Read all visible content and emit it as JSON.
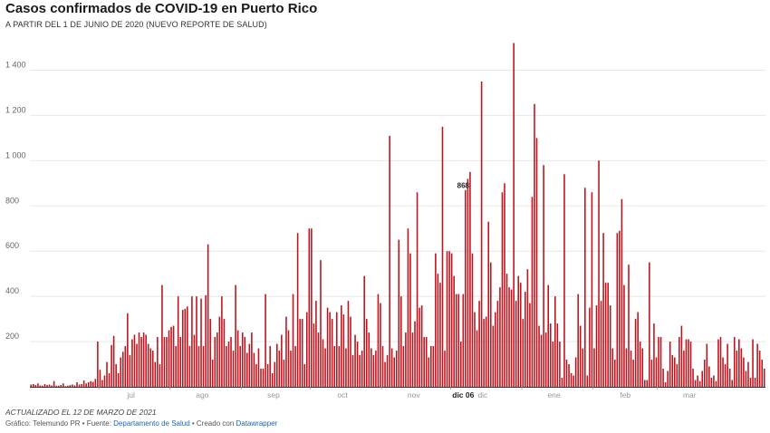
{
  "chart_data": {
    "type": "bar",
    "title": "Casos confirmados de COVID-19 en Puerto Rico",
    "subtitle": "A PARTIR DEL 1 DE JUNIO DE 2020 (NUEVO REPORTE DE SALUD)",
    "y_ticks": [
      "200",
      "400",
      "600",
      "800",
      "1 000",
      "1 200",
      "1 400"
    ],
    "y_tick_values": [
      200,
      400,
      600,
      800,
      1000,
      1200,
      1400
    ],
    "ylim": [
      0,
      1550
    ],
    "grid": true,
    "x_start": "2020-06-01",
    "x_month_labels": [
      {
        "label": "jul",
        "date": "2020-07-01"
      },
      {
        "label": "ago",
        "date": "2020-08-01"
      },
      {
        "label": "sep",
        "date": "2020-09-01"
      },
      {
        "label": "oct",
        "date": "2020-10-01"
      },
      {
        "label": "nov",
        "date": "2020-11-01"
      },
      {
        "label": "dic",
        "date": "2020-12-01"
      },
      {
        "label": "ene",
        "date": "2021-01-01"
      },
      {
        "label": "feb",
        "date": "2021-02-01"
      },
      {
        "label": "mar",
        "date": "2021-03-01"
      }
    ],
    "highlight": {
      "date": "2020-12-06",
      "label": "dic 06",
      "value": 868,
      "value_label": "868"
    },
    "values": [
      10,
      12,
      8,
      15,
      6,
      5,
      12,
      8,
      10,
      6,
      25,
      5,
      5,
      8,
      15,
      3,
      5,
      8,
      10,
      6,
      20,
      10,
      12,
      28,
      15,
      20,
      25,
      22,
      35,
      200,
      75,
      30,
      50,
      110,
      60,
      185,
      225,
      100,
      60,
      130,
      155,
      180,
      325,
      140,
      210,
      230,
      190,
      240,
      220,
      240,
      230,
      190,
      170,
      160,
      110,
      220,
      100,
      450,
      220,
      220,
      250,
      265,
      270,
      180,
      400,
      220,
      340,
      345,
      355,
      180,
      400,
      230,
      400,
      180,
      390,
      180,
      405,
      630,
      300,
      120,
      220,
      240,
      310,
      400,
      300,
      180,
      200,
      220,
      160,
      450,
      250,
      180,
      240,
      220,
      150,
      190,
      240,
      150,
      100,
      170,
      80,
      80,
      410,
      100,
      180,
      60,
      110,
      190,
      160,
      230,
      120,
      310,
      250,
      160,
      410,
      180,
      680,
      300,
      300,
      100,
      330,
      700,
      700,
      280,
      380,
      240,
      560,
      210,
      170,
      350,
      330,
      300,
      180,
      330,
      180,
      360,
      320,
      170,
      380,
      310,
      140,
      230,
      200,
      140,
      160,
      490,
      300,
      240,
      170,
      140,
      160,
      410,
      370,
      180,
      110,
      140,
      1110,
      170,
      130,
      160,
      650,
      400,
      180,
      240,
      700,
      590,
      240,
      290,
      860,
      350,
      360,
      220,
      220,
      130,
      180,
      180,
      590,
      500,
      460,
      1150,
      160,
      600,
      600,
      590,
      490,
      410,
      410,
      200,
      410,
      870,
      920,
      950,
      590,
      330,
      250,
      380,
      1350,
      300,
      310,
      730,
      550,
      270,
      330,
      380,
      440,
      860,
      900,
      500,
      440,
      430,
      1520,
      380,
      490,
      460,
      300,
      420,
      520,
      370,
      840,
      1250,
      1100,
      270,
      230,
      980,
      240,
      450,
      280,
      200,
      400,
      280,
      200,
      40,
      940,
      120,
      100,
      60,
      50,
      130,
      410,
      270,
      170,
      880,
      50,
      350,
      860,
      170,
      360,
      1000,
      380,
      680,
      460,
      460,
      360,
      170,
      120,
      680,
      690,
      830,
      450,
      170,
      540,
      160,
      120,
      300,
      330,
      200,
      170,
      30,
      30,
      550,
      120,
      280,
      130,
      220,
      220,
      80,
      20,
      70,
      200,
      140,
      130,
      100,
      220,
      270,
      160,
      210,
      210,
      200,
      80,
      30,
      50,
      25,
      70,
      120,
      190,
      90,
      40,
      50,
      25,
      210,
      220,
      130,
      100,
      190,
      80,
      30,
      220,
      160,
      210,
      170,
      130,
      70,
      110,
      40,
      210,
      40,
      190,
      160,
      120,
      80
    ]
  },
  "notes": "ACTUALIZADO EL 12 DE MARZO DE 2021",
  "footer": {
    "prefix": "Gráfico: Telemundo PR • Fuente: ",
    "source": "Departamento de Salud",
    "middle": " • Creado con ",
    "tool": "Datawrapper"
  },
  "colors": {
    "bar": "#c1121c",
    "grid": "#e8e8e8"
  }
}
